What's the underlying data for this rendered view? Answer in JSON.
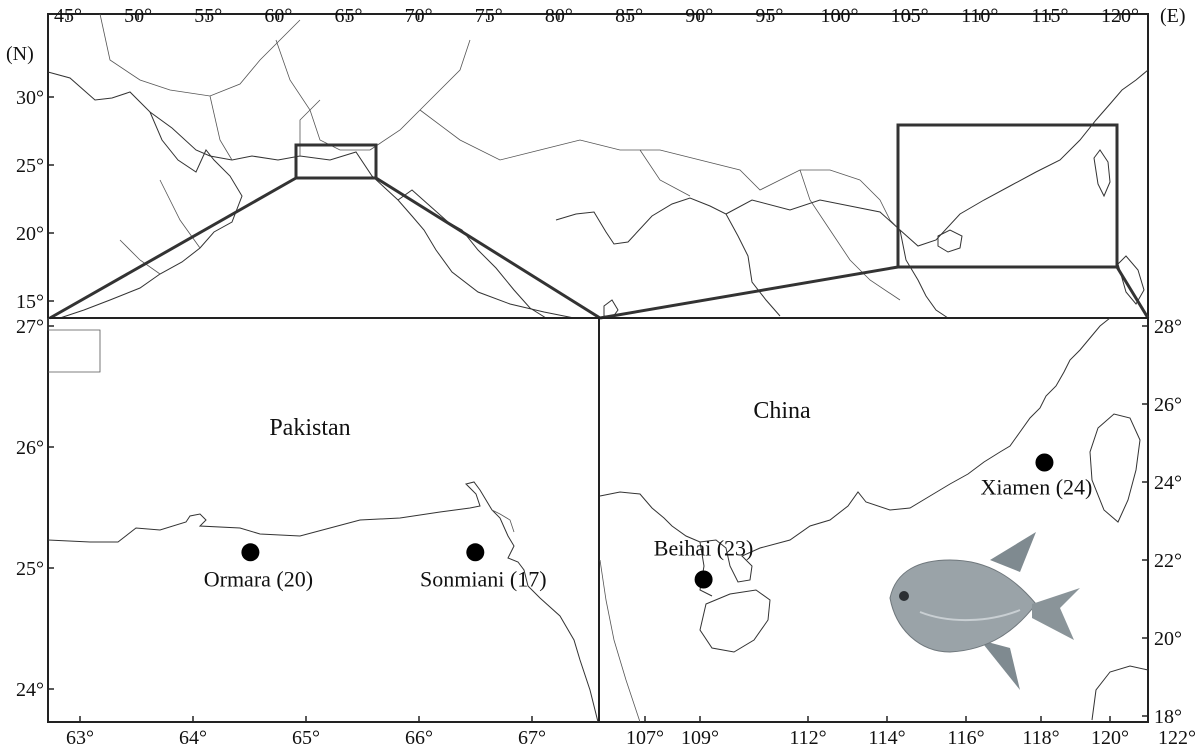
{
  "top_map": {
    "lon_ticks": [
      "45°",
      "50°",
      "55°",
      "60°",
      "65°",
      "70°",
      "75°",
      "80°",
      "85°",
      "90°",
      "95°",
      "100°",
      "105°",
      "110°",
      "115°",
      "120°"
    ],
    "lon_unit": "(E)",
    "lat_unit": "(N)",
    "lat_ticks": [
      "30°",
      "25°",
      "20°",
      "15°"
    ]
  },
  "pakistan_map": {
    "country": "Pakistan",
    "lat_ticks": [
      "27°",
      "26°",
      "25°",
      "24°"
    ],
    "lon_ticks": [
      "63°",
      "64°",
      "65°",
      "66°",
      "67°"
    ],
    "sites": [
      {
        "label": "Ormara (20)",
        "lon": 64.6,
        "lat": 25.2
      },
      {
        "label": "Sonmiani (17)",
        "lon": 66.6,
        "lat": 25.2
      }
    ]
  },
  "china_map": {
    "country": "China",
    "lat_ticks": [
      "28°",
      "26°",
      "24°",
      "22°",
      "20°",
      "18°"
    ],
    "lon_ticks": [
      "107°",
      "109°",
      "112°",
      "114°",
      "116°",
      "118°",
      "120°",
      "122°"
    ],
    "sites": [
      {
        "label": "Beihai (23)",
        "lon": 109.1,
        "lat": 21.5
      },
      {
        "label": "Xiamen (24)",
        "lon": 118.1,
        "lat": 24.5
      }
    ]
  },
  "symbols": {
    "site_marker": "filled-circle",
    "fish_image": "pomfret-fish-icon"
  },
  "colors": {
    "line": "#222222",
    "marker": "#000000",
    "fish_body": "#9aa3a8"
  }
}
